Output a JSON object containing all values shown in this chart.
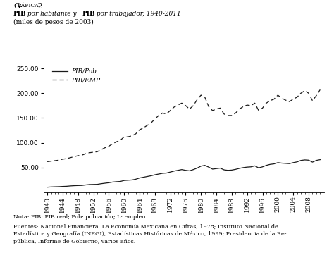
{
  "years": [
    1940,
    1941,
    1942,
    1943,
    1944,
    1945,
    1946,
    1947,
    1948,
    1949,
    1950,
    1951,
    1952,
    1953,
    1954,
    1955,
    1956,
    1957,
    1958,
    1959,
    1960,
    1961,
    1962,
    1963,
    1964,
    1965,
    1966,
    1967,
    1968,
    1969,
    1970,
    1971,
    1972,
    1973,
    1974,
    1975,
    1976,
    1977,
    1978,
    1979,
    1980,
    1981,
    1982,
    1983,
    1984,
    1985,
    1986,
    1987,
    1988,
    1989,
    1990,
    1991,
    1992,
    1993,
    1994,
    1995,
    1996,
    1997,
    1998,
    1999,
    2000,
    2001,
    2002,
    2003,
    2004,
    2005,
    2006,
    2007,
    2008,
    2009,
    2010,
    2011
  ],
  "pib_pob": [
    10.5,
    11.0,
    11.3,
    11.5,
    12.0,
    12.3,
    13.0,
    13.5,
    13.8,
    14.0,
    15.0,
    15.8,
    16.0,
    16.2,
    17.5,
    18.5,
    19.5,
    20.8,
    21.5,
    22.0,
    24.0,
    24.5,
    25.0,
    26.5,
    29.0,
    30.5,
    32.0,
    33.5,
    35.5,
    37.0,
    38.5,
    39.0,
    41.0,
    43.0,
    44.5,
    46.0,
    44.5,
    43.5,
    46.0,
    49.0,
    53.0,
    54.5,
    51.0,
    47.0,
    48.0,
    49.0,
    45.5,
    44.5,
    45.0,
    46.5,
    48.5,
    50.0,
    51.0,
    51.5,
    53.5,
    49.5,
    51.5,
    54.5,
    56.5,
    57.5,
    60.0,
    59.0,
    58.5,
    58.0,
    60.0,
    61.5,
    64.5,
    65.5,
    65.0,
    61.0,
    64.5,
    66.0
  ],
  "pib_emp": [
    62,
    63,
    64,
    65,
    67,
    68,
    70,
    72,
    74,
    75,
    78,
    80,
    81,
    82,
    86,
    90,
    93,
    98,
    102,
    105,
    112,
    112,
    114,
    118,
    126,
    130,
    135,
    140,
    148,
    155,
    160,
    158,
    165,
    172,
    176,
    180,
    175,
    168,
    175,
    187,
    196,
    192,
    173,
    165,
    168,
    170,
    158,
    155,
    155,
    160,
    168,
    173,
    176,
    175,
    180,
    165,
    170,
    180,
    185,
    188,
    196,
    190,
    186,
    183,
    188,
    192,
    200,
    205,
    200,
    185,
    195,
    207
  ],
  "legend1": "PIB/Pob",
  "legend2": "PIB/EMP",
  "yticks": [
    50.0,
    100.0,
    150.0,
    200.0,
    250.0
  ],
  "xtick_years": [
    1940,
    1944,
    1948,
    1952,
    1956,
    1960,
    1964,
    1968,
    1972,
    1976,
    1980,
    1984,
    1988,
    1992,
    1996,
    2000,
    2004,
    2008
  ],
  "xlim": [
    1939,
    2012
  ],
  "ylim": [
    0,
    262
  ],
  "line_color": "#1a1a1a",
  "note_text": "Nota: PIB: PIB real; Pob: pobiación; L: empleo.",
  "source_line1": "Fuentes: Nacional Financiera, La Economía Mexicana en Cifras, 1978; Instituto Nacional de",
  "source_line2": "Estadística y Geografía (INEGI), Estadísticas Históricas de México, 1999; Presidencia de la Re-",
  "source_line3": "pública, Informe de Gobierno, varios años."
}
